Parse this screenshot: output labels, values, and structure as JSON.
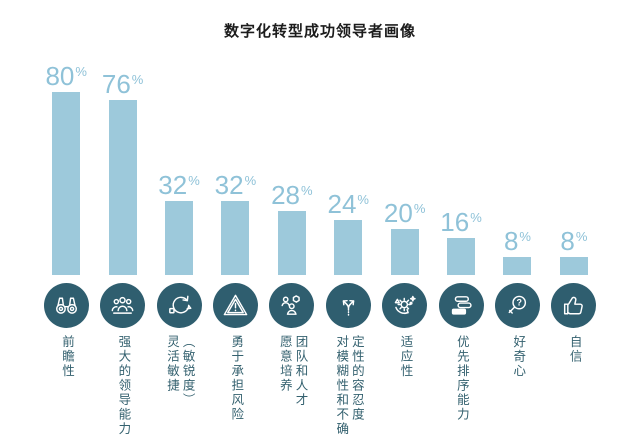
{
  "colors": {
    "bar": "#9dc9db",
    "percent_text": "#8fc2d8",
    "icon_circle": "#2f5e6f",
    "icon_stroke": "#ffffff",
    "label_text": "#34616f",
    "title_text": "#1c1c1c",
    "background": "#ffffff"
  },
  "chart_data": {
    "type": "bar",
    "title": "数字化转型成功领导者画像",
    "unit": "%",
    "categories": [
      "前瞻性",
      "强大的领导能力",
      "灵活敏捷（敏锐度）",
      "勇于承担风险",
      "愿意培养团队和人才",
      "对模糊性和不确定性的容忍度",
      "适应性",
      "优先排序能力",
      "好奇心",
      "自信"
    ],
    "category_lines": [
      [
        "前瞻性"
      ],
      [
        "强大的领导能力"
      ],
      [
        "灵活敏捷",
        "（敏锐度）"
      ],
      [
        "勇于承担风险"
      ],
      [
        "愿意培养",
        "团队和人才"
      ],
      [
        "对模糊性和不确",
        "定性的容忍度"
      ],
      [
        "适应性"
      ],
      [
        "优先排序能力"
      ],
      [
        "好奇心"
      ],
      [
        "自信"
      ]
    ],
    "values": [
      80,
      76,
      32,
      32,
      28,
      24,
      20,
      16,
      8,
      8
    ],
    "value_labels": [
      "80%",
      "76%",
      "32%",
      "32%",
      "28%",
      "24%",
      "20%",
      "16%",
      "8%",
      "8%"
    ],
    "icons": [
      "binoculars-icon",
      "team-leadership-icon",
      "agile-cycle-icon",
      "risk-warning-icon",
      "talent-development-icon",
      "branching-arrows-icon",
      "adaptability-gear-icon",
      "priority-list-icon",
      "curiosity-magnifier-icon",
      "thumbs-up-icon"
    ],
    "ylim": [
      0,
      100
    ],
    "grid": false,
    "legend": false,
    "axes_visible": false
  }
}
